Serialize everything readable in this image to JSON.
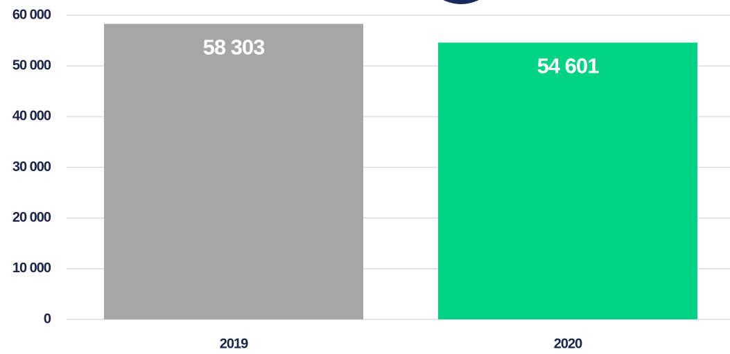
{
  "chart_data": {
    "type": "bar",
    "categories": [
      "2019",
      "2020"
    ],
    "values": [
      58303,
      54601
    ],
    "value_labels": [
      "58 303",
      "54 601"
    ],
    "colors": [
      "#a6a6a6",
      "#00d384"
    ],
    "ylim": [
      0,
      60000
    ],
    "yticks": [
      0,
      {
        "value": 10000,
        "label": "10 000"
      },
      {
        "value": 20000,
        "label": "20 000"
      },
      {
        "value": 30000,
        "label": "30 000"
      },
      {
        "value": 40000,
        "label": "40 000"
      },
      {
        "value": 50000,
        "label": "50 000"
      },
      {
        "value": 60000,
        "label": "60 000"
      }
    ],
    "grid": true
  }
}
